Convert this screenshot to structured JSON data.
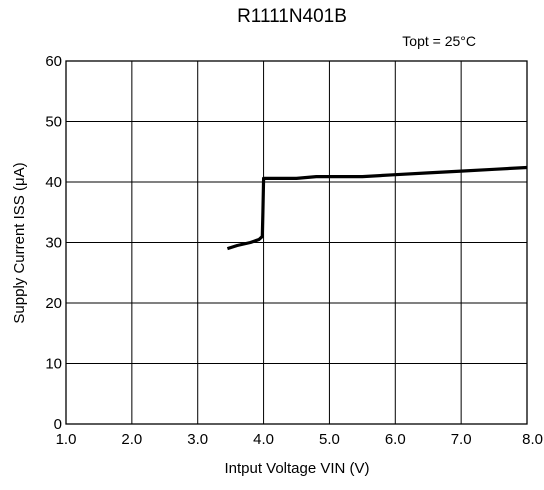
{
  "chart_data": {
    "type": "line",
    "title": "R1111N401B",
    "annotation": "Topt = 25°C",
    "xlabel": "Intput Voltage VIN (V)",
    "ylabel": "Supply Current  ISS (μA)",
    "xlim": [
      1.0,
      8.0
    ],
    "ylim": [
      0,
      60
    ],
    "x_ticks": [
      1.0,
      2.0,
      3.0,
      4.0,
      5.0,
      6.0,
      7.0,
      8.0
    ],
    "x_tick_labels": [
      "1.0",
      "2.0",
      "3.0",
      "4.0",
      "5.0",
      "6.0",
      "7.0",
      "8.0"
    ],
    "y_ticks": [
      0,
      10,
      20,
      30,
      40,
      50,
      60
    ],
    "y_tick_labels": [
      "0",
      "10",
      "20",
      "30",
      "40",
      "50",
      "60"
    ],
    "grid": true,
    "series": [
      {
        "color": "#000000",
        "x": [
          3.45,
          3.6,
          3.8,
          3.93,
          3.98,
          3.99,
          4.0,
          4.3,
          4.5,
          4.8,
          5.0,
          5.5,
          6.0,
          6.5,
          7.0,
          7.5,
          8.0
        ],
        "y": [
          29.0,
          29.5,
          30.0,
          30.5,
          31.0,
          35.0,
          40.6,
          40.6,
          40.6,
          40.9,
          40.9,
          40.9,
          41.2,
          41.5,
          41.8,
          42.1,
          42.4
        ]
      }
    ]
  }
}
